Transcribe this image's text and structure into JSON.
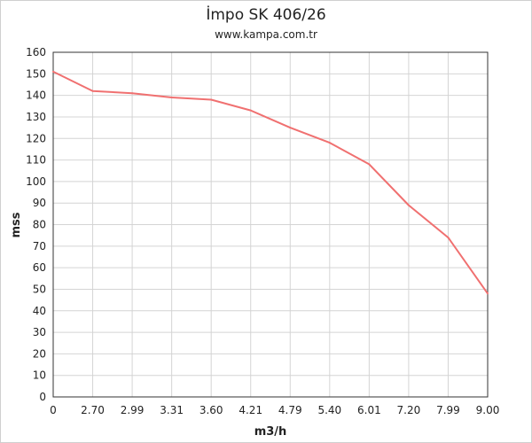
{
  "chart_data": {
    "type": "line",
    "title": "İmpo SK 406/26",
    "subtitle": "www.kampa.com.tr",
    "xlabel": "m3/h",
    "ylabel": "mss",
    "categories": [
      "0",
      "2.70",
      "2.99",
      "3.31",
      "3.60",
      "4.21",
      "4.79",
      "5.40",
      "6.01",
      "7.20",
      "7.99",
      "9.00"
    ],
    "series": [
      {
        "values": [
          151,
          142,
          141,
          139,
          138,
          133,
          125,
          118,
          108,
          89,
          74,
          48
        ]
      }
    ],
    "ylim": [
      0,
      160
    ],
    "yticks": [
      0,
      10,
      20,
      30,
      40,
      50,
      60,
      70,
      80,
      90,
      100,
      110,
      120,
      130,
      140,
      150,
      160
    ],
    "grid": true,
    "line_color": "#f07070"
  }
}
